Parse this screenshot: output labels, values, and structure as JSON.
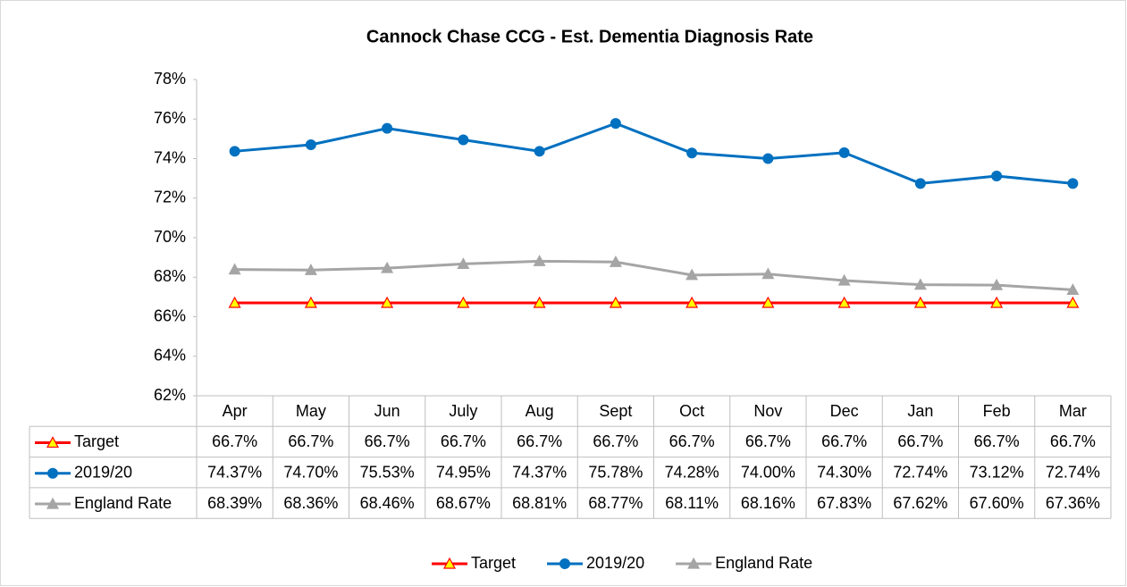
{
  "chart_data": {
    "type": "line",
    "title": "Cannock Chase CCG - Est. Dementia Diagnosis Rate",
    "categories": [
      "Apr",
      "May",
      "Jun",
      "July",
      "Aug",
      "Sept",
      "Oct",
      "Nov",
      "Dec",
      "Jan",
      "Feb",
      "Mar"
    ],
    "ylim": [
      62,
      78
    ],
    "yticks": [
      {
        "value": 62,
        "label": "62%"
      },
      {
        "value": 64,
        "label": "64%"
      },
      {
        "value": 66,
        "label": "66%"
      },
      {
        "value": 68,
        "label": "68%"
      },
      {
        "value": 70,
        "label": "70%"
      },
      {
        "value": 72,
        "label": "72%"
      },
      {
        "value": 74,
        "label": "74%"
      },
      {
        "value": 76,
        "label": "76%"
      },
      {
        "value": 78,
        "label": "78%"
      }
    ],
    "grid": false,
    "legend": "bottom",
    "series": [
      {
        "name": "Target",
        "color": "#ff0000",
        "marker": "triangle",
        "marker_fill": "#ffff00",
        "values": [
          66.7,
          66.7,
          66.7,
          66.7,
          66.7,
          66.7,
          66.7,
          66.7,
          66.7,
          66.7,
          66.7,
          66.7
        ],
        "value_labels": [
          "66.7%",
          "66.7%",
          "66.7%",
          "66.7%",
          "66.7%",
          "66.7%",
          "66.7%",
          "66.7%",
          "66.7%",
          "66.7%",
          "66.7%",
          "66.7%"
        ]
      },
      {
        "name": "2019/20",
        "color": "#0070c0",
        "marker": "circle",
        "marker_fill": "#0070c0",
        "values": [
          74.37,
          74.7,
          75.53,
          74.95,
          74.37,
          75.78,
          74.28,
          74.0,
          74.3,
          72.74,
          73.12,
          72.74
        ],
        "value_labels": [
          "74.37%",
          "74.70%",
          "75.53%",
          "74.95%",
          "74.37%",
          "75.78%",
          "74.28%",
          "74.00%",
          "74.30%",
          "72.74%",
          "73.12%",
          "72.74%"
        ]
      },
      {
        "name": "England Rate",
        "color": "#a5a5a5",
        "marker": "triangle",
        "marker_fill": "#a5a5a5",
        "values": [
          68.39,
          68.36,
          68.46,
          68.67,
          68.81,
          68.77,
          68.11,
          68.16,
          67.83,
          67.62,
          67.6,
          67.36
        ],
        "value_labels": [
          "68.39%",
          "68.36%",
          "68.46%",
          "68.67%",
          "68.81%",
          "68.77%",
          "68.11%",
          "68.16%",
          "67.83%",
          "67.62%",
          "67.60%",
          "67.36%"
        ]
      }
    ]
  }
}
